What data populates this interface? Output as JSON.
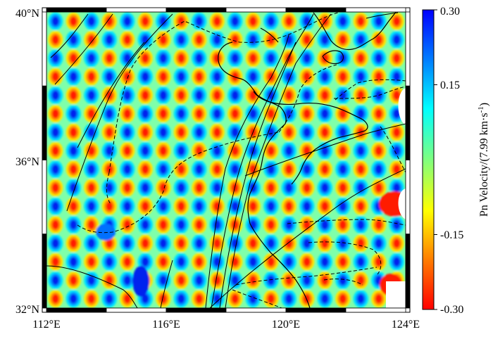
{
  "map": {
    "lat_labels": [
      "40°N",
      "36°N",
      "32°N"
    ],
    "lon_labels": [
      "112°E",
      "116°E",
      "120°E",
      "124°E"
    ],
    "lon_range": [
      112,
      124
    ],
    "lat_range": [
      32,
      40
    ],
    "field": "Pn velocity perturbation, checkerboard pattern"
  },
  "colorbar": {
    "tick_labels": [
      "0.30",
      "0.15",
      "-0.15",
      "-0.30"
    ],
    "tick_values": [
      0.3,
      0.15,
      -0.15,
      -0.3
    ],
    "title_main": "Pn Velocity/(7.99 km·s",
    "title_sup": "-1",
    "title_close": ")",
    "range": [
      -0.3,
      0.3
    ],
    "colors": {
      "min": "#ff0000",
      "low": "#ff8000",
      "mid_low": "#ffff00",
      "mid": "#7fff7f",
      "mid_high": "#00ffff",
      "high": "#0080ff",
      "max": "#0000ff"
    }
  }
}
